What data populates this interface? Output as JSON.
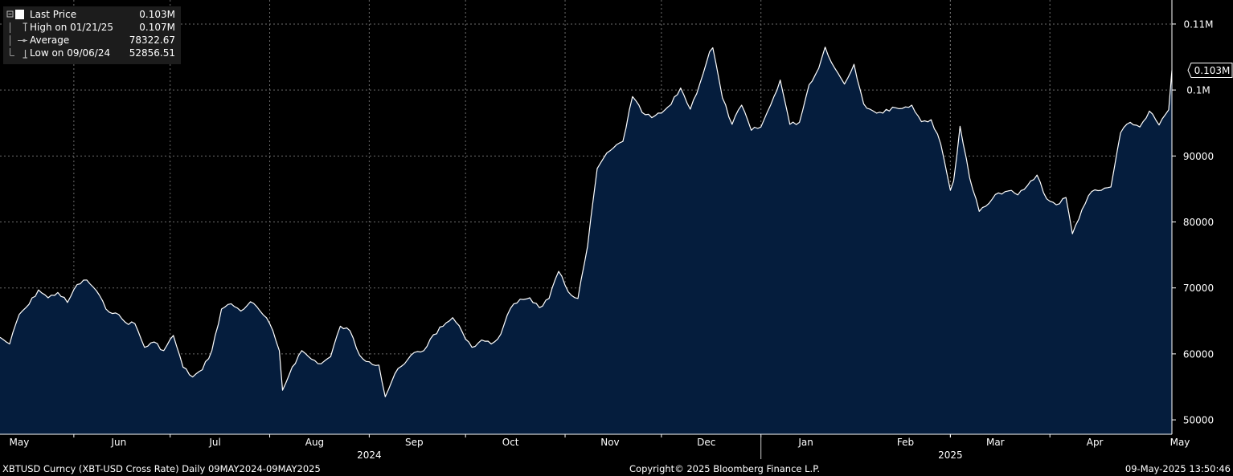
{
  "colors": {
    "background": "#000000",
    "area_fill": "#051d3d",
    "line": "#ffffff",
    "grid": "#6b6b6b",
    "legend_bg": "#1c1c1c"
  },
  "legend": {
    "last_price": {
      "label": "Last Price",
      "value": "0.103M"
    },
    "high": {
      "label": "High on 01/21/25",
      "value": "0.107M"
    },
    "average": {
      "label": "Average",
      "value": "78322.67"
    },
    "low": {
      "label": "Low on 09/06/24",
      "value": "52856.51"
    }
  },
  "footer": {
    "left": "XBTUSD Curncy (XBT-USD Cross Rate)  Daily 09MAY2024-09MAY2025",
    "center": "Copyright© 2025 Bloomberg Finance L.P.",
    "right": "09-May-2025 13:50:46"
  },
  "chart_data": {
    "type": "area",
    "title": "",
    "xlabel": "",
    "ylabel": "",
    "ylim": [
      48000,
      112000
    ],
    "xlim": [
      "2024-05-09",
      "2025-05-09"
    ],
    "grid": true,
    "y_axis_position": "right",
    "yticks": [
      {
        "value": 50000,
        "label": "50000"
      },
      {
        "value": 60000,
        "label": "60000"
      },
      {
        "value": 70000,
        "label": "70000"
      },
      {
        "value": 80000,
        "label": "80000"
      },
      {
        "value": 90000,
        "label": "90000"
      },
      {
        "value": 100000,
        "label": "0.1M"
      },
      {
        "value": 110000,
        "label": "0.11M"
      }
    ],
    "xticks": [
      {
        "date": "2024-05-15",
        "label": "May"
      },
      {
        "date": "2024-06-15",
        "label": "Jun"
      },
      {
        "date": "2024-07-15",
        "label": "Jul"
      },
      {
        "date": "2024-08-15",
        "label": "Aug"
      },
      {
        "date": "2024-09-15",
        "label": "Sep"
      },
      {
        "date": "2024-10-15",
        "label": "Oct"
      },
      {
        "date": "2024-11-15",
        "label": "Nov"
      },
      {
        "date": "2024-12-15",
        "label": "Dec"
      },
      {
        "date": "2025-01-15",
        "label": "Jan"
      },
      {
        "date": "2025-02-15",
        "label": "Feb"
      },
      {
        "date": "2025-03-15",
        "label": "Mar"
      },
      {
        "date": "2025-04-15",
        "label": "Apr"
      },
      {
        "date": "2025-05-15",
        "label": "May"
      }
    ],
    "years": [
      {
        "date": "2024-09-01",
        "label": "2024"
      },
      {
        "date": "2025-03-01",
        "label": "2025"
      }
    ],
    "last_value_label": "0.103M",
    "series": [
      {
        "name": "Last Price",
        "x": [
          "2024-05-09",
          "2024-05-12",
          "2024-05-15",
          "2024-05-18",
          "2024-05-21",
          "2024-05-24",
          "2024-05-27",
          "2024-05-30",
          "2024-06-02",
          "2024-06-05",
          "2024-06-08",
          "2024-06-11",
          "2024-06-14",
          "2024-06-17",
          "2024-06-20",
          "2024-06-23",
          "2024-06-26",
          "2024-06-29",
          "2024-07-02",
          "2024-07-05",
          "2024-07-08",
          "2024-07-11",
          "2024-07-14",
          "2024-07-17",
          "2024-07-20",
          "2024-07-23",
          "2024-07-26",
          "2024-07-29",
          "2024-08-01",
          "2024-08-04",
          "2024-08-05",
          "2024-08-08",
          "2024-08-11",
          "2024-08-14",
          "2024-08-17",
          "2024-08-20",
          "2024-08-23",
          "2024-08-26",
          "2024-08-29",
          "2024-09-01",
          "2024-09-04",
          "2024-09-06",
          "2024-09-09",
          "2024-09-12",
          "2024-09-15",
          "2024-09-18",
          "2024-09-21",
          "2024-09-24",
          "2024-09-27",
          "2024-09-30",
          "2024-10-03",
          "2024-10-06",
          "2024-10-09",
          "2024-10-12",
          "2024-10-15",
          "2024-10-18",
          "2024-10-21",
          "2024-10-24",
          "2024-10-27",
          "2024-10-30",
          "2024-11-02",
          "2024-11-05",
          "2024-11-08",
          "2024-11-11",
          "2024-11-13",
          "2024-11-16",
          "2024-11-19",
          "2024-11-22",
          "2024-11-25",
          "2024-11-28",
          "2024-12-01",
          "2024-12-04",
          "2024-12-07",
          "2024-12-10",
          "2024-12-13",
          "2024-12-16",
          "2024-12-17",
          "2024-12-20",
          "2024-12-23",
          "2024-12-26",
          "2024-12-29",
          "2025-01-01",
          "2025-01-04",
          "2025-01-07",
          "2025-01-10",
          "2025-01-13",
          "2025-01-16",
          "2025-01-19",
          "2025-01-21",
          "2025-01-24",
          "2025-01-27",
          "2025-01-30",
          "2025-02-02",
          "2025-02-05",
          "2025-02-08",
          "2025-02-11",
          "2025-02-14",
          "2025-02-17",
          "2025-02-20",
          "2025-02-23",
          "2025-02-26",
          "2025-03-01",
          "2025-03-02",
          "2025-03-04",
          "2025-03-07",
          "2025-03-10",
          "2025-03-13",
          "2025-03-16",
          "2025-03-19",
          "2025-03-22",
          "2025-03-25",
          "2025-03-28",
          "2025-03-31",
          "2025-04-03",
          "2025-04-06",
          "2025-04-08",
          "2025-04-11",
          "2025-04-14",
          "2025-04-17",
          "2025-04-20",
          "2025-04-23",
          "2025-04-26",
          "2025-04-29",
          "2025-05-02",
          "2025-05-05",
          "2025-05-08",
          "2025-05-09"
        ],
        "values": [
          62500,
          61500,
          66000,
          67500,
          69700,
          68500,
          69300,
          67800,
          70500,
          71200,
          69600,
          66800,
          66200,
          64800,
          64600,
          61000,
          61800,
          60500,
          62800,
          58000,
          56500,
          57600,
          60500,
          66800,
          67600,
          66500,
          67900,
          66500,
          64600,
          60500,
          54500,
          58000,
          60500,
          59200,
          58500,
          59600,
          64200,
          63500,
          59800,
          58800,
          58300,
          53500,
          57000,
          58500,
          60200,
          60500,
          62900,
          64200,
          65500,
          63300,
          61000,
          62100,
          61500,
          63000,
          66900,
          68300,
          68500,
          67000,
          68400,
          72500,
          69400,
          68400,
          76300,
          88100,
          89700,
          91200,
          92200,
          99000,
          96600,
          95800,
          96500,
          97800,
          100300,
          97100,
          101000,
          105800,
          106400,
          98800,
          94800,
          97700,
          93900,
          94400,
          97700,
          101500,
          94800,
          95100,
          100800,
          103300,
          106500,
          103300,
          100900,
          103900,
          97900,
          96800,
          96500,
          97400,
          97200,
          97700,
          95200,
          95500,
          91800,
          84800,
          86200,
          94500,
          86700,
          81600,
          82800,
          84400,
          84700,
          84100,
          85500,
          87100,
          83500,
          82600,
          83700,
          78200,
          81900,
          84600,
          84800,
          85300,
          93500,
          95100,
          94400,
          96800,
          94700,
          97000,
          103000
        ]
      }
    ]
  }
}
